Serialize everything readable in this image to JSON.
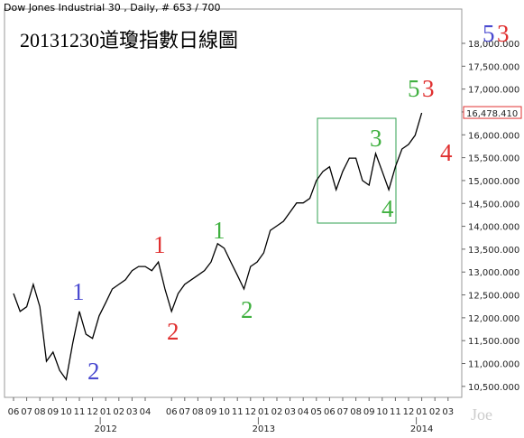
{
  "chart_data": {
    "type": "line",
    "title": "Dow Jones Industrial 30 , Daily, # 653 / 700",
    "subtitle": "20131230道瓊指數日線圖",
    "categories": [
      "06",
      null,
      "07",
      null,
      "08",
      null,
      "09",
      null,
      "10",
      null,
      "11",
      null,
      "12",
      null,
      "01",
      null,
      "02",
      null,
      "03",
      null,
      "04",
      null,
      null,
      null,
      "06",
      null,
      "07",
      null,
      "08",
      null,
      "09",
      null,
      "10",
      null,
      "11",
      null,
      "12",
      null,
      "01",
      null,
      "02",
      null,
      "03",
      null,
      "04",
      null,
      "05",
      null,
      "06",
      null,
      "07",
      null,
      "08",
      null,
      "09",
      null,
      "10",
      null,
      "11",
      null,
      "12",
      null,
      "01",
      null,
      "02",
      null,
      "03",
      null
    ],
    "years": [
      "2012",
      "2013",
      "2014"
    ],
    "series": [
      {
        "color": "#000000",
        "values": [
          12530,
          12140,
          12240,
          12730,
          12240,
          11050,
          11250,
          10850,
          10650,
          11450,
          12140,
          11640,
          11550,
          12040,
          12330,
          12630,
          12730,
          12830,
          13030,
          13120,
          13120,
          13030,
          13220,
          12630,
          12140,
          12530,
          12730,
          12830,
          12930,
          13030,
          13220,
          13620,
          13520,
          13220,
          12930,
          12630,
          13120,
          13220,
          13420,
          13910,
          14010,
          14110,
          14310,
          14510,
          14510,
          14610,
          15000,
          15200,
          15300,
          14800,
          15200,
          15490,
          15490,
          15000,
          14900,
          15590,
          15200,
          14800,
          15300,
          15690,
          15790,
          15990,
          16480,
          null,
          null,
          null,
          null,
          null
        ]
      }
    ],
    "ylim": [
      10260,
      18750
    ],
    "yticks": [
      {
        "value": 10500,
        "label": "10,500.000"
      },
      {
        "value": 11000,
        "label": "11,000.000"
      },
      {
        "value": 11500,
        "label": "11,500.000"
      },
      {
        "value": 12000,
        "label": "12,000.000"
      },
      {
        "value": 12500,
        "label": "12,500.000"
      },
      {
        "value": 13000,
        "label": "13,000.000"
      },
      {
        "value": 13500,
        "label": "13,500.000"
      },
      {
        "value": 14000,
        "label": "14,000.000"
      },
      {
        "value": 14500,
        "label": "14,500.000"
      },
      {
        "value": 15000,
        "label": "15,000.000"
      },
      {
        "value": 15500,
        "label": "15,500.000"
      },
      {
        "value": 16000,
        "label": "16,000.000"
      },
      {
        "value": 16500,
        "label": "16,500.000"
      },
      {
        "value": 17000,
        "label": "17,000.000"
      },
      {
        "value": 17500,
        "label": "17,500.000"
      },
      {
        "value": 18000,
        "label": "18,000.000"
      }
    ],
    "last_value": {
      "value": 16478.41,
      "label": "16,478.410"
    },
    "annotations": [
      {
        "text": "1",
        "color": "#4a4ad0"
      },
      {
        "text": "2",
        "color": "#4a4ad0"
      },
      {
        "text": "1",
        "color": "#e03030"
      },
      {
        "text": "2",
        "color": "#e03030"
      },
      {
        "text": "1",
        "color": "#40b040"
      },
      {
        "text": "2",
        "color": "#40b040"
      },
      {
        "text": "3",
        "color": "#40b040"
      },
      {
        "text": "4",
        "color": "#40b040"
      },
      {
        "text": "5",
        "color": "#40b040"
      },
      {
        "text": "3",
        "color": "#e03030"
      },
      {
        "text": "4",
        "color": "#e03030"
      },
      {
        "text": "5",
        "color": "#4a4ad0"
      },
      {
        "text": "3",
        "color": "#e03030"
      }
    ],
    "watermark": "Joe"
  }
}
